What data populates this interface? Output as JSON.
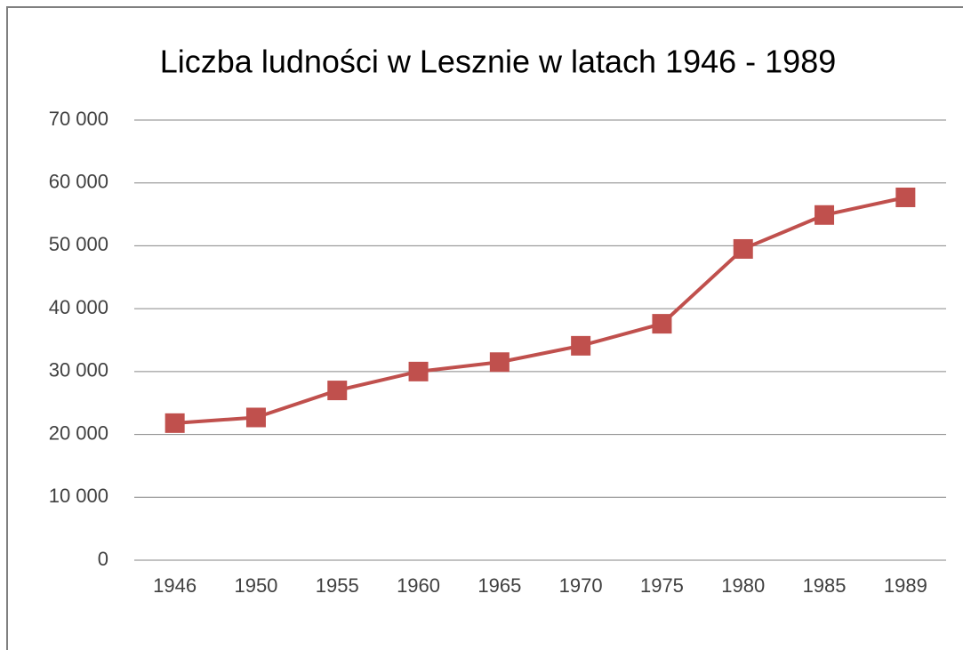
{
  "chart_data": {
    "type": "line",
    "title": "Liczba ludności w Lesznie w latach 1946 - 1989",
    "categories": [
      "1946",
      "1950",
      "1955",
      "1960",
      "1965",
      "1970",
      "1975",
      "1980",
      "1985",
      "1989"
    ],
    "series": [
      {
        "name": "Liczba ludności",
        "color": "#c0504d",
        "values": [
          21800,
          22700,
          27000,
          30000,
          31500,
          34100,
          37600,
          49500,
          54900,
          57700
        ]
      }
    ],
    "ylim": [
      0,
      70000
    ],
    "yticks": [
      0,
      {
        "value": 10000,
        "label": "10 000"
      },
      {
        "value": 20000,
        "label": "20 000"
      },
      {
        "value": 30000,
        "label": "30 000"
      },
      {
        "value": 40000,
        "label": "40 000"
      },
      {
        "value": 50000,
        "label": "50 000"
      },
      {
        "value": 60000,
        "label": "60 000"
      },
      {
        "value": 70000,
        "label": "70 000"
      }
    ],
    "grid": true
  }
}
